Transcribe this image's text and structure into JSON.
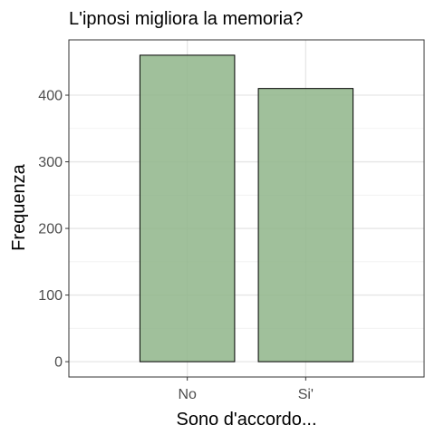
{
  "chart_data": {
    "type": "bar",
    "title": "L'ipnosi migliora la memoria?",
    "xlabel": "Sono d'accordo...",
    "ylabel": "Frequenza",
    "categories": [
      "No",
      "Si'"
    ],
    "values": [
      460,
      410
    ],
    "ylim": [
      -23,
      483
    ],
    "yticks": [
      0,
      100,
      200,
      300,
      400
    ],
    "grid": true,
    "legend": "none",
    "bar_fill": "#8fb58a",
    "bar_stroke": "#000000"
  }
}
